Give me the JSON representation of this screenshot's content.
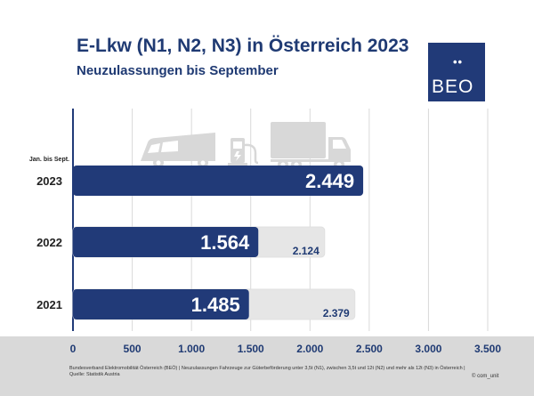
{
  "header": {
    "title": "E-Lkw (N1, N2, N3) in Österreich 2023",
    "subtitle": "Neuzulassungen bis September"
  },
  "logo": {
    "dots": "••",
    "text": "BEO"
  },
  "period_label": "Jan. bis Sept.",
  "footnote": {
    "line1": "Bundesverband Elektromobilität Österreich (BEÖ) | Neuzulassungen Fahrzeuge zur Güterbeförderung unter 3,5t (N1), zwischen 3,5t und 12t (N2) und mehr als 12t (N3) in Österreich |",
    "line2": "Quelle: Statistik Austria",
    "copyright": "© com_unit"
  },
  "icons": [
    "van-icon",
    "charging-station-icon",
    "truck-icon"
  ],
  "colors": {
    "bar": "#213a78",
    "bar_background": "#e6e6e6",
    "accent": "#1f3a73",
    "footer": "#d9d9d9"
  },
  "chart_data": {
    "type": "bar",
    "orientation": "horizontal",
    "categories": [
      "2023",
      "2022",
      "2021"
    ],
    "series": [
      {
        "values": [
          2449,
          1564,
          1485
        ],
        "labels": [
          "2.449",
          "1.564",
          "1.485"
        ]
      },
      {
        "values": [
          null,
          2124,
          2379
        ],
        "labels": [
          "",
          "2.124",
          "2.379"
        ]
      }
    ],
    "xlim": [
      0,
      3500
    ],
    "xticks": [
      0,
      500,
      1000,
      1500,
      2000,
      2500,
      3000,
      3500
    ],
    "xtick_labels": [
      "0",
      "500",
      "1.000",
      "1.500",
      "2.000",
      "2.500",
      "3.000",
      "3.500"
    ],
    "grid": true
  }
}
